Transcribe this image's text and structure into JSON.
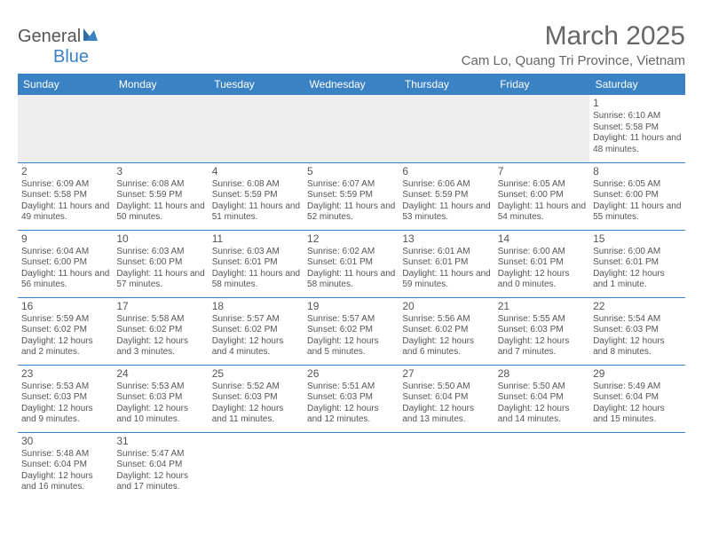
{
  "logo": {
    "text1": "General",
    "text2": "Blue"
  },
  "title": "March 2025",
  "location": "Cam Lo, Quang Tri Province, Vietnam",
  "headers": [
    "Sunday",
    "Monday",
    "Tuesday",
    "Wednesday",
    "Thursday",
    "Friday",
    "Saturday"
  ],
  "colors": {
    "header_bg": "#3b82c4",
    "header_text": "#ffffff",
    "border": "#3b82c4",
    "empty_bg": "#eeeeee",
    "text": "#555555"
  },
  "weeks": [
    [
      null,
      null,
      null,
      null,
      null,
      null,
      {
        "n": "1",
        "sr": "Sunrise: 6:10 AM",
        "ss": "Sunset: 5:58 PM",
        "dl": "Daylight: 11 hours and 48 minutes."
      }
    ],
    [
      {
        "n": "2",
        "sr": "Sunrise: 6:09 AM",
        "ss": "Sunset: 5:58 PM",
        "dl": "Daylight: 11 hours and 49 minutes."
      },
      {
        "n": "3",
        "sr": "Sunrise: 6:08 AM",
        "ss": "Sunset: 5:59 PM",
        "dl": "Daylight: 11 hours and 50 minutes."
      },
      {
        "n": "4",
        "sr": "Sunrise: 6:08 AM",
        "ss": "Sunset: 5:59 PM",
        "dl": "Daylight: 11 hours and 51 minutes."
      },
      {
        "n": "5",
        "sr": "Sunrise: 6:07 AM",
        "ss": "Sunset: 5:59 PM",
        "dl": "Daylight: 11 hours and 52 minutes."
      },
      {
        "n": "6",
        "sr": "Sunrise: 6:06 AM",
        "ss": "Sunset: 5:59 PM",
        "dl": "Daylight: 11 hours and 53 minutes."
      },
      {
        "n": "7",
        "sr": "Sunrise: 6:05 AM",
        "ss": "Sunset: 6:00 PM",
        "dl": "Daylight: 11 hours and 54 minutes."
      },
      {
        "n": "8",
        "sr": "Sunrise: 6:05 AM",
        "ss": "Sunset: 6:00 PM",
        "dl": "Daylight: 11 hours and 55 minutes."
      }
    ],
    [
      {
        "n": "9",
        "sr": "Sunrise: 6:04 AM",
        "ss": "Sunset: 6:00 PM",
        "dl": "Daylight: 11 hours and 56 minutes."
      },
      {
        "n": "10",
        "sr": "Sunrise: 6:03 AM",
        "ss": "Sunset: 6:00 PM",
        "dl": "Daylight: 11 hours and 57 minutes."
      },
      {
        "n": "11",
        "sr": "Sunrise: 6:03 AM",
        "ss": "Sunset: 6:01 PM",
        "dl": "Daylight: 11 hours and 58 minutes."
      },
      {
        "n": "12",
        "sr": "Sunrise: 6:02 AM",
        "ss": "Sunset: 6:01 PM",
        "dl": "Daylight: 11 hours and 58 minutes."
      },
      {
        "n": "13",
        "sr": "Sunrise: 6:01 AM",
        "ss": "Sunset: 6:01 PM",
        "dl": "Daylight: 11 hours and 59 minutes."
      },
      {
        "n": "14",
        "sr": "Sunrise: 6:00 AM",
        "ss": "Sunset: 6:01 PM",
        "dl": "Daylight: 12 hours and 0 minutes."
      },
      {
        "n": "15",
        "sr": "Sunrise: 6:00 AM",
        "ss": "Sunset: 6:01 PM",
        "dl": "Daylight: 12 hours and 1 minute."
      }
    ],
    [
      {
        "n": "16",
        "sr": "Sunrise: 5:59 AM",
        "ss": "Sunset: 6:02 PM",
        "dl": "Daylight: 12 hours and 2 minutes."
      },
      {
        "n": "17",
        "sr": "Sunrise: 5:58 AM",
        "ss": "Sunset: 6:02 PM",
        "dl": "Daylight: 12 hours and 3 minutes."
      },
      {
        "n": "18",
        "sr": "Sunrise: 5:57 AM",
        "ss": "Sunset: 6:02 PM",
        "dl": "Daylight: 12 hours and 4 minutes."
      },
      {
        "n": "19",
        "sr": "Sunrise: 5:57 AM",
        "ss": "Sunset: 6:02 PM",
        "dl": "Daylight: 12 hours and 5 minutes."
      },
      {
        "n": "20",
        "sr": "Sunrise: 5:56 AM",
        "ss": "Sunset: 6:02 PM",
        "dl": "Daylight: 12 hours and 6 minutes."
      },
      {
        "n": "21",
        "sr": "Sunrise: 5:55 AM",
        "ss": "Sunset: 6:03 PM",
        "dl": "Daylight: 12 hours and 7 minutes."
      },
      {
        "n": "22",
        "sr": "Sunrise: 5:54 AM",
        "ss": "Sunset: 6:03 PM",
        "dl": "Daylight: 12 hours and 8 minutes."
      }
    ],
    [
      {
        "n": "23",
        "sr": "Sunrise: 5:53 AM",
        "ss": "Sunset: 6:03 PM",
        "dl": "Daylight: 12 hours and 9 minutes."
      },
      {
        "n": "24",
        "sr": "Sunrise: 5:53 AM",
        "ss": "Sunset: 6:03 PM",
        "dl": "Daylight: 12 hours and 10 minutes."
      },
      {
        "n": "25",
        "sr": "Sunrise: 5:52 AM",
        "ss": "Sunset: 6:03 PM",
        "dl": "Daylight: 12 hours and 11 minutes."
      },
      {
        "n": "26",
        "sr": "Sunrise: 5:51 AM",
        "ss": "Sunset: 6:03 PM",
        "dl": "Daylight: 12 hours and 12 minutes."
      },
      {
        "n": "27",
        "sr": "Sunrise: 5:50 AM",
        "ss": "Sunset: 6:04 PM",
        "dl": "Daylight: 12 hours and 13 minutes."
      },
      {
        "n": "28",
        "sr": "Sunrise: 5:50 AM",
        "ss": "Sunset: 6:04 PM",
        "dl": "Daylight: 12 hours and 14 minutes."
      },
      {
        "n": "29",
        "sr": "Sunrise: 5:49 AM",
        "ss": "Sunset: 6:04 PM",
        "dl": "Daylight: 12 hours and 15 minutes."
      }
    ],
    [
      {
        "n": "30",
        "sr": "Sunrise: 5:48 AM",
        "ss": "Sunset: 6:04 PM",
        "dl": "Daylight: 12 hours and 16 minutes."
      },
      {
        "n": "31",
        "sr": "Sunrise: 5:47 AM",
        "ss": "Sunset: 6:04 PM",
        "dl": "Daylight: 12 hours and 17 minutes."
      },
      null,
      null,
      null,
      null,
      null
    ]
  ]
}
